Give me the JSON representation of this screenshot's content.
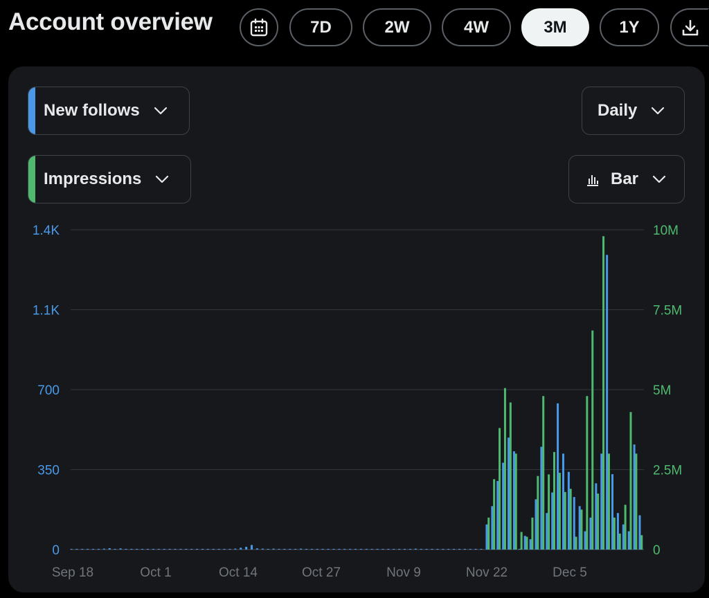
{
  "header": {
    "title": "Account overview",
    "ranges": [
      "7D",
      "2W",
      "4W",
      "3M",
      "1Y"
    ],
    "active_range": "3M"
  },
  "controls": {
    "metric_primary": "New follows",
    "metric_secondary": "Impressions",
    "interval": "Daily",
    "chart_type": "Bar"
  },
  "colors": {
    "primary_series": "#4a99e9",
    "secondary_series": "#4fba6f",
    "active_pill": "#eff3f4",
    "card_bg": "#16181c"
  },
  "icons": {
    "calendar": "calendar-icon",
    "download": "download-icon",
    "dropdown": "chevron-down-icon",
    "bar_chart": "bar-chart-icon"
  },
  "chart_data": {
    "type": "bar",
    "x_labels": [
      "Sep 18",
      "Oct 1",
      "Oct 14",
      "Oct 27",
      "Nov 9",
      "Nov 22",
      "Dec 5"
    ],
    "y_left": {
      "ticks": [
        "0",
        "350",
        "700",
        "1.1K",
        "1.4K"
      ],
      "range": [
        0,
        1400
      ]
    },
    "y_right": {
      "ticks": [
        "0",
        "2.5M",
        "5M",
        "7.5M",
        "10M"
      ],
      "range": [
        0,
        10000000
      ]
    },
    "grid": true,
    "series": [
      {
        "name": "New follows",
        "axis": "left",
        "values": [
          2,
          2,
          3,
          3,
          2,
          3,
          4,
          6,
          3,
          5,
          2,
          3,
          2,
          3,
          3,
          2,
          3,
          2,
          2,
          2,
          2,
          2,
          2,
          3,
          2,
          2,
          2,
          3,
          3,
          2,
          4,
          8,
          12,
          20,
          5,
          4,
          3,
          4,
          3,
          2,
          3,
          3,
          4,
          3,
          3,
          2,
          2,
          2,
          2,
          2,
          2,
          2,
          2,
          2,
          3,
          2,
          2,
          2,
          2,
          2,
          2,
          2,
          3,
          4,
          3,
          2,
          2,
          2,
          2,
          2,
          2,
          2,
          2,
          2,
          2,
          3,
          110,
          190,
          300,
          380,
          490,
          430,
          0,
          60,
          45,
          220,
          450,
          160,
          250,
          640,
          420,
          340,
          230,
          190,
          80,
          140,
          290,
          420,
          1290,
          330,
          160,
          110,
          80,
          460,
          150
        ]
      },
      {
        "name": "Impressions",
        "axis": "right",
        "values": [
          0,
          0,
          0,
          0,
          0,
          0,
          0,
          0,
          0,
          0,
          0,
          0,
          0,
          0,
          0,
          0,
          0,
          0,
          0,
          0,
          0,
          0,
          0,
          0,
          0,
          0,
          0,
          0,
          0,
          0,
          0,
          0,
          0,
          0,
          0,
          0,
          0,
          0,
          0,
          0,
          0,
          0,
          0,
          0,
          0,
          0,
          0,
          0,
          0,
          0,
          0,
          0,
          0,
          0,
          0,
          0,
          0,
          0,
          0,
          0,
          0,
          0,
          0,
          0,
          0,
          0,
          0,
          0,
          0,
          0,
          0,
          0,
          0,
          0,
          0,
          0,
          1000000,
          2200000,
          3800000,
          5050000,
          4600000,
          3000000,
          550000,
          400000,
          1000000,
          2300000,
          4800000,
          2350000,
          3050000,
          2400000,
          1800000,
          1900000,
          400000,
          1250000,
          4800000,
          6850000,
          1750000,
          9800000,
          3000000,
          1000000,
          500000,
          1400000,
          4300000,
          3000000,
          450000
        ]
      }
    ]
  }
}
